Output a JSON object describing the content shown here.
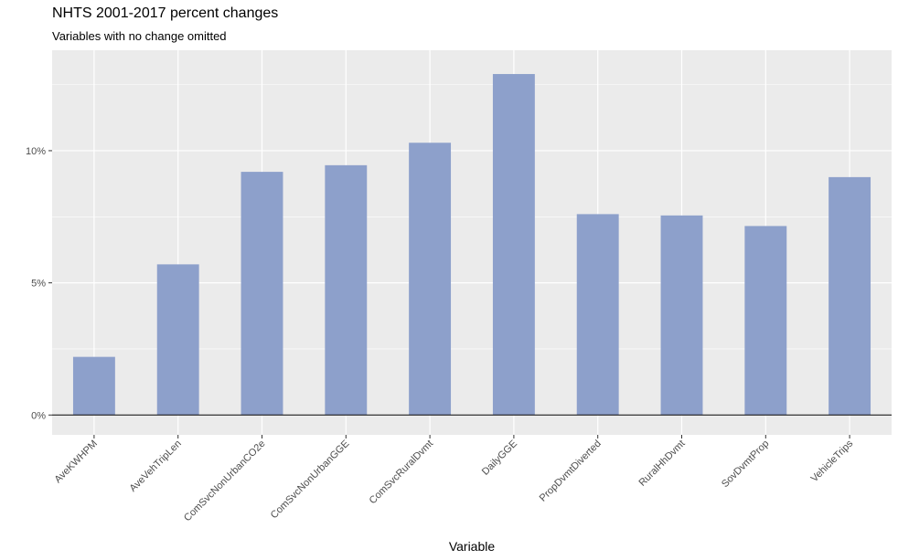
{
  "chart_data": {
    "type": "bar",
    "title": "NHTS 2001-2017 percent changes",
    "subtitle": "Variables with no change omitted",
    "xlabel": "Variable",
    "ylabel": "",
    "categories": [
      "AveKWHPM",
      "AveVehTripLen",
      "ComSvcNonUrbanCO2e",
      "ComSvcNonUrbanGGE",
      "ComSvcRuralDvmt",
      "DailyGGE",
      "PropDvmtDiverted",
      "RuralHhDvmt",
      "SovDvmtProp",
      "VehicleTrips"
    ],
    "values": [
      2.2,
      5.7,
      9.2,
      9.45,
      10.3,
      12.9,
      7.6,
      7.55,
      7.15,
      9.0
    ],
    "ylim": [
      -0.75,
      13.8
    ],
    "yticks": [
      0,
      5,
      10
    ],
    "ytick_labels": [
      "0%",
      "5%",
      "10%"
    ],
    "grid": true,
    "bar_color": "#8DA0CB",
    "panel_background": "#EBEBEB",
    "grid_color": "#FFFFFF",
    "zero_line_color": "#000000"
  }
}
